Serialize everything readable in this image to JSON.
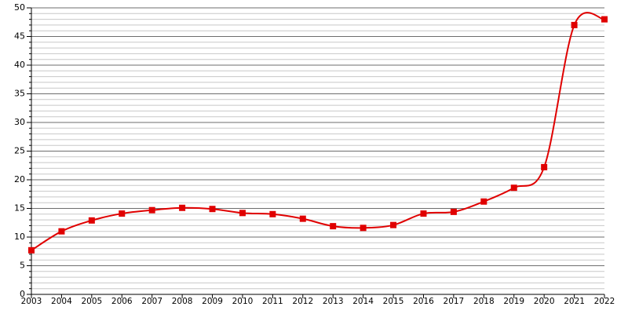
{
  "chart_data": {
    "type": "line",
    "x": [
      2003,
      2004,
      2005,
      2006,
      2007,
      2008,
      2009,
      2010,
      2011,
      2012,
      2013,
      2014,
      2015,
      2016,
      2017,
      2018,
      2019,
      2020,
      2021,
      2022
    ],
    "series": [
      {
        "color": "#e00000",
        "values": [
          7.7,
          11.0,
          12.9,
          14.1,
          14.7,
          15.1,
          14.9,
          14.2,
          14.0,
          13.2,
          11.9,
          11.6,
          12.1,
          14.1,
          14.4,
          16.2,
          18.6,
          22.2,
          47.0,
          48.0
        ]
      }
    ],
    "xlim": [
      2003,
      2022
    ],
    "xticks": [
      2003,
      2004,
      2005,
      2006,
      2007,
      2008,
      2009,
      2010,
      2011,
      2012,
      2013,
      2014,
      2015,
      2016,
      2017,
      2018,
      2019,
      2020,
      2021,
      2022
    ],
    "ylim": [
      0,
      50
    ],
    "yticks": [
      0,
      5,
      10,
      15,
      20,
      25,
      30,
      35,
      40,
      45,
      50
    ],
    "grid": true,
    "minor_grid": true,
    "smooth": true
  }
}
